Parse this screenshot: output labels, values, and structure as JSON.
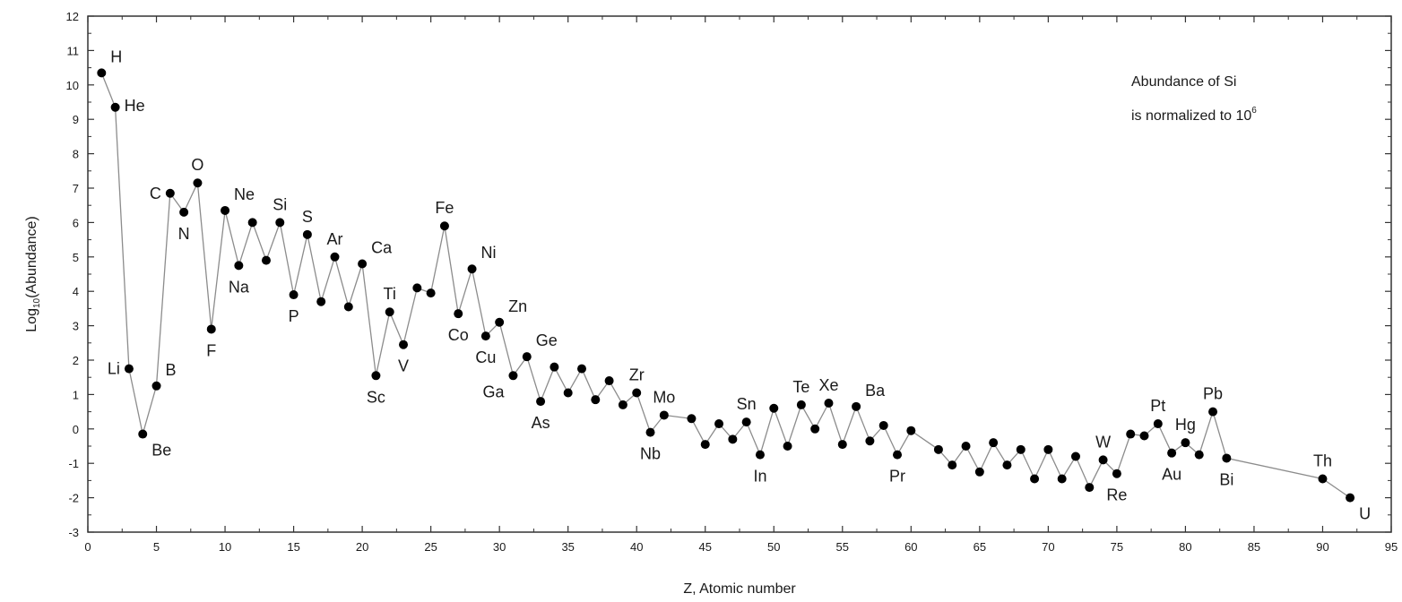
{
  "chart_data": {
    "type": "scatter",
    "title": "",
    "xlabel": "Z, Atomic number",
    "ylabel_main": "Log",
    "ylabel_sub": "10",
    "ylabel_rest": "(Abundance)",
    "annotation_line1": "Abundance of Si",
    "annotation_line2": "is normalized to 10",
    "annotation_sup": "6",
    "xlim": [
      0,
      95
    ],
    "ylim": [
      -3,
      12
    ],
    "xticks": [
      0,
      5,
      10,
      15,
      20,
      25,
      30,
      35,
      40,
      45,
      50,
      55,
      60,
      65,
      70,
      75,
      80,
      85,
      90,
      95
    ],
    "yticks": [
      -3,
      -2,
      -1,
      0,
      1,
      2,
      3,
      4,
      5,
      6,
      7,
      8,
      9,
      10,
      11,
      12
    ],
    "connected": true,
    "colors": {
      "line": "#8c8c8c",
      "marker": "#000000",
      "axis": "#333333"
    },
    "x": [
      1,
      2,
      3,
      4,
      5,
      6,
      7,
      8,
      9,
      10,
      11,
      12,
      13,
      14,
      15,
      16,
      17,
      18,
      19,
      20,
      21,
      22,
      23,
      24,
      25,
      26,
      27,
      28,
      29,
      30,
      31,
      32,
      33,
      34,
      35,
      36,
      37,
      38,
      39,
      40,
      41,
      42,
      44,
      45,
      46,
      47,
      48,
      49,
      50,
      51,
      52,
      53,
      54,
      55,
      56,
      57,
      58,
      59,
      60,
      62,
      63,
      64,
      65,
      66,
      67,
      68,
      69,
      70,
      71,
      72,
      73,
      74,
      75,
      76,
      77,
      78,
      79,
      80,
      81,
      82,
      83,
      90,
      92
    ],
    "y": [
      10.35,
      9.35,
      1.75,
      -0.15,
      1.25,
      6.85,
      6.3,
      7.15,
      2.9,
      6.35,
      4.75,
      6.0,
      4.9,
      6.0,
      3.9,
      5.65,
      3.7,
      5.0,
      3.55,
      4.8,
      1.55,
      3.4,
      2.45,
      4.1,
      3.95,
      5.9,
      3.35,
      4.65,
      2.7,
      3.1,
      1.55,
      2.1,
      0.8,
      1.8,
      1.05,
      1.75,
      0.85,
      1.4,
      0.7,
      1.05,
      -0.1,
      0.4,
      0.3,
      -0.45,
      0.15,
      -0.3,
      0.2,
      -0.75,
      0.6,
      -0.5,
      0.7,
      0.0,
      0.75,
      -0.45,
      0.65,
      -0.35,
      0.1,
      -0.75,
      -0.05,
      -0.6,
      -1.05,
      -0.5,
      -1.25,
      -0.4,
      -1.05,
      -0.6,
      -1.45,
      -0.6,
      -1.45,
      -0.8,
      -1.7,
      -0.9,
      -1.3,
      -0.15,
      -0.2,
      0.15,
      -0.7,
      -0.4,
      -0.75,
      0.5,
      -0.85,
      -1.45,
      -2.0
    ],
    "point_labels": [
      {
        "text": "H",
        "z": 1,
        "pos": "above-right"
      },
      {
        "text": "He",
        "z": 2,
        "pos": "right"
      },
      {
        "text": "Li",
        "z": 3,
        "pos": "left"
      },
      {
        "text": "Be",
        "z": 4,
        "pos": "below-right"
      },
      {
        "text": "B",
        "z": 5,
        "pos": "above-right"
      },
      {
        "text": "C",
        "z": 6,
        "pos": "left"
      },
      {
        "text": "N",
        "z": 7,
        "pos": "below"
      },
      {
        "text": "O",
        "z": 8,
        "pos": "above"
      },
      {
        "text": "F",
        "z": 9,
        "pos": "below"
      },
      {
        "text": "Ne",
        "z": 10,
        "pos": "above-right"
      },
      {
        "text": "Na",
        "z": 11,
        "pos": "below"
      },
      {
        "text": "Si",
        "z": 14,
        "pos": "above"
      },
      {
        "text": "P",
        "z": 15,
        "pos": "below"
      },
      {
        "text": "S",
        "z": 16,
        "pos": "above"
      },
      {
        "text": "Ar",
        "z": 18,
        "pos": "above"
      },
      {
        "text": "Ca",
        "z": 20,
        "pos": "above-right"
      },
      {
        "text": "Sc",
        "z": 21,
        "pos": "below"
      },
      {
        "text": "Ti",
        "z": 22,
        "pos": "above"
      },
      {
        "text": "V",
        "z": 23,
        "pos": "below"
      },
      {
        "text": "Fe",
        "z": 26,
        "pos": "above"
      },
      {
        "text": "Co",
        "z": 27,
        "pos": "below"
      },
      {
        "text": "Ni",
        "z": 28,
        "pos": "above-right"
      },
      {
        "text": "Cu",
        "z": 29,
        "pos": "below"
      },
      {
        "text": "Zn",
        "z": 30,
        "pos": "above-right"
      },
      {
        "text": "Ga",
        "z": 31,
        "pos": "below-left"
      },
      {
        "text": "Ge",
        "z": 32,
        "pos": "above-right"
      },
      {
        "text": "As",
        "z": 33,
        "pos": "below"
      },
      {
        "text": "Zr",
        "z": 40,
        "pos": "above"
      },
      {
        "text": "Nb",
        "z": 41,
        "pos": "below"
      },
      {
        "text": "Mo",
        "z": 42,
        "pos": "above"
      },
      {
        "text": "Sn",
        "z": 48,
        "pos": "above"
      },
      {
        "text": "In",
        "z": 49,
        "pos": "below"
      },
      {
        "text": "Te",
        "z": 52,
        "pos": "above"
      },
      {
        "text": "Xe",
        "z": 54,
        "pos": "above"
      },
      {
        "text": "Ba",
        "z": 56,
        "pos": "above-right"
      },
      {
        "text": "Pr",
        "z": 59,
        "pos": "below"
      },
      {
        "text": "W",
        "z": 74,
        "pos": "above"
      },
      {
        "text": "Re",
        "z": 75,
        "pos": "below"
      },
      {
        "text": "Pt",
        "z": 78,
        "pos": "above"
      },
      {
        "text": "Hg",
        "z": 80,
        "pos": "above"
      },
      {
        "text": "Au",
        "z": 79,
        "pos": "below"
      },
      {
        "text": "Pb",
        "z": 82,
        "pos": "above"
      },
      {
        "text": "Bi",
        "z": 83,
        "pos": "below"
      },
      {
        "text": "Th",
        "z": 90,
        "pos": "above"
      },
      {
        "text": "U",
        "z": 92,
        "pos": "below-right"
      }
    ]
  }
}
